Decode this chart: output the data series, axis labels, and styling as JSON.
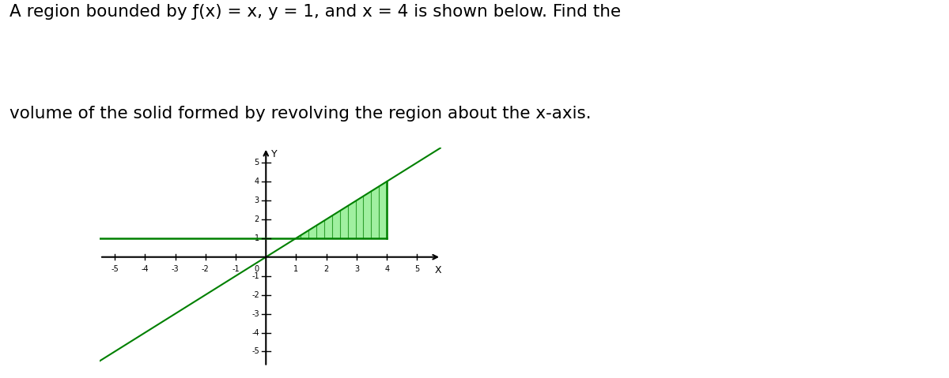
{
  "title_line1": "A region bounded by ƒ(x) = x, y = 1, and x = 4 is shown below. Find the",
  "title_line2": "volume of the solid formed by revolving the region about the x-axis.",
  "title_fontsize": 15.5,
  "title_color": "#000000",
  "background_color": "#ffffff",
  "line_color": "#008000",
  "fill_color": "#90ee90",
  "hatch_color": "#008000",
  "axis_color": "#000000",
  "xlim": [
    -5.5,
    5.8
  ],
  "ylim": [
    -5.8,
    5.8
  ],
  "xticks": [
    -5,
    -4,
    -3,
    -2,
    -1,
    1,
    2,
    3,
    4,
    5
  ],
  "yticks": [
    -5,
    -4,
    -3,
    -2,
    -1,
    1,
    2,
    3,
    4,
    5
  ],
  "xlabel": "X",
  "ylabel": "Y",
  "figsize": [
    12.0,
    4.79
  ],
  "dpi": 100
}
